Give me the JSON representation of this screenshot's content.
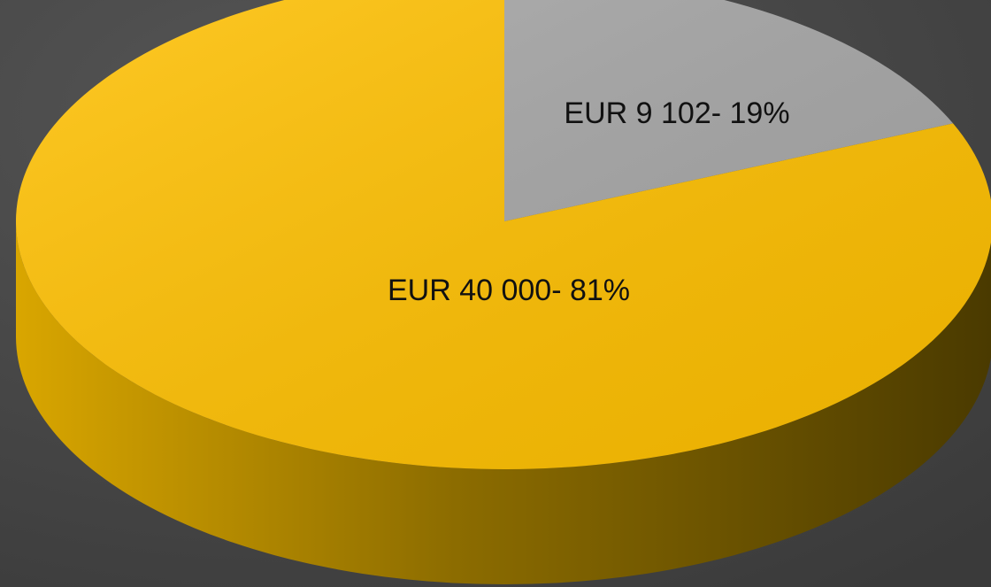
{
  "chart_data": {
    "type": "pie",
    "values": [
      9102,
      40000
    ],
    "value_labels": [
      "EUR 9 102- 19%",
      "EUR 40 000- 81%"
    ],
    "colors": [
      "#a6a6a6",
      "#ffc000"
    ]
  }
}
